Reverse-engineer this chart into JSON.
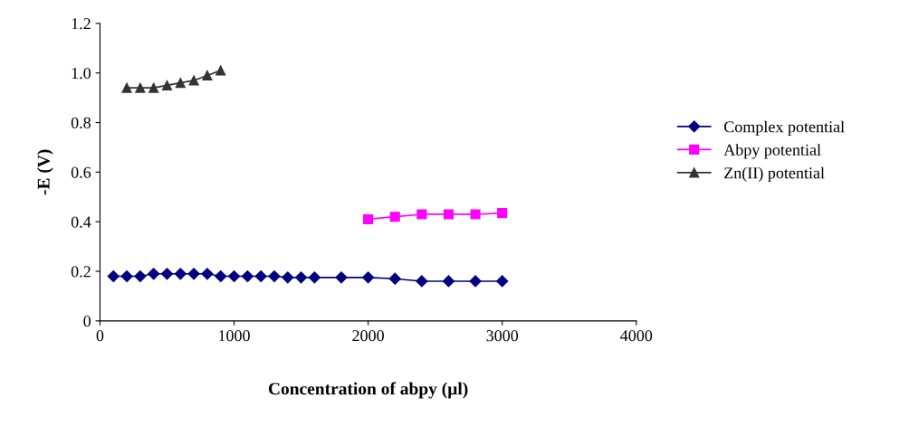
{
  "chart_data": {
    "type": "line",
    "xlabel": "Concentration of abpy (µl)",
    "ylabel": "-E (V)",
    "xlim": [
      0,
      4000
    ],
    "xticks": [
      0,
      1000,
      2000,
      3000,
      4000
    ],
    "ylim": [
      0,
      1.2
    ],
    "yticks": [
      {
        "value": 0,
        "label": "0"
      },
      {
        "value": 0.2,
        "label": "0.2"
      },
      {
        "value": 0.4,
        "label": "0.4"
      },
      {
        "value": 0.6,
        "label": "0.6"
      },
      {
        "value": 0.8,
        "label": "0.8"
      },
      {
        "value": 1.0,
        "label": "1.0"
      },
      {
        "value": 1.2,
        "label": "1.2"
      }
    ],
    "legend": "right",
    "grid": false,
    "series": [
      {
        "name": "Complex potential",
        "color": "#000080",
        "marker": "diamond",
        "x": [
          100,
          200,
          300,
          400,
          500,
          600,
          700,
          800,
          900,
          1000,
          1100,
          1200,
          1300,
          1400,
          1500,
          1600,
          1800,
          2000,
          2200,
          2400,
          2600,
          2800,
          3000
        ],
        "values": [
          0.18,
          0.18,
          0.18,
          0.19,
          0.19,
          0.19,
          0.19,
          0.19,
          0.18,
          0.18,
          0.18,
          0.18,
          0.18,
          0.175,
          0.175,
          0.175,
          0.175,
          0.175,
          0.17,
          0.16,
          0.16,
          0.16,
          0.16
        ]
      },
      {
        "name": "Abpy potential",
        "color": "#ff00ff",
        "marker": "square",
        "x": [
          2000,
          2200,
          2400,
          2600,
          2800,
          3000
        ],
        "values": [
          0.41,
          0.42,
          0.43,
          0.43,
          0.43,
          0.435
        ]
      },
      {
        "name": "Zn(II) potential",
        "color": "#333333",
        "marker": "triangle",
        "x": [
          200,
          300,
          400,
          500,
          600,
          700,
          800,
          900
        ],
        "values": [
          0.94,
          0.94,
          0.94,
          0.95,
          0.96,
          0.97,
          0.99,
          1.01
        ]
      }
    ]
  }
}
